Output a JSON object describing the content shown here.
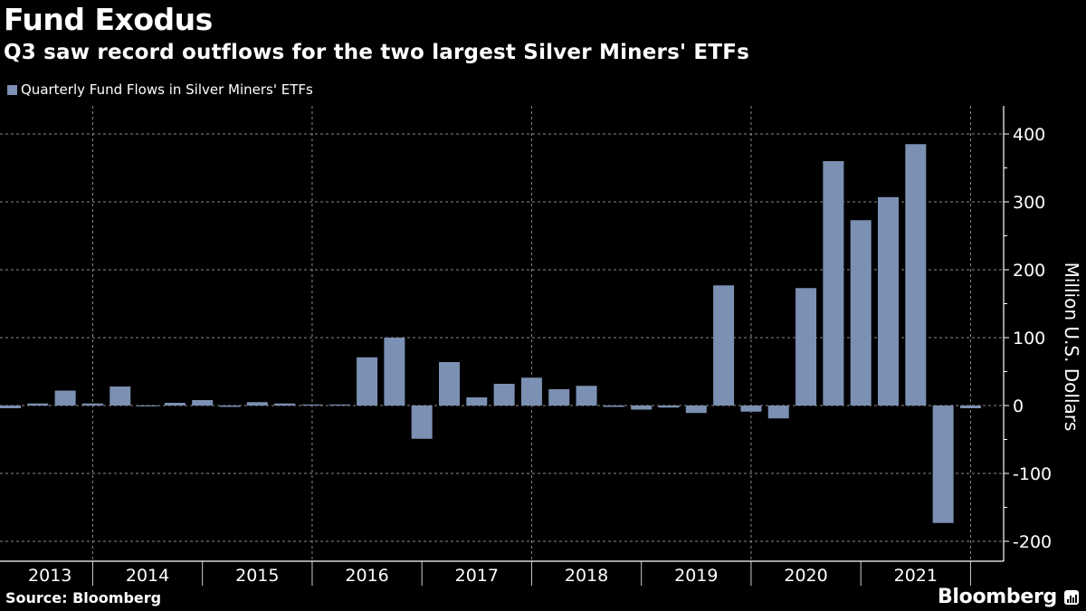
{
  "header": {
    "title": "Fund Exodus",
    "subtitle": "Q3 saw record outflows for the two largest Silver Miners' ETFs"
  },
  "footer": {
    "source": "Source: Bloomberg",
    "brand": "Bloomberg",
    "brand_icon": "bloomberg-chart-icon"
  },
  "colors": {
    "background": "#000000",
    "bar": "#7b90b2",
    "grid": "#8a8a8a",
    "text": "#ffffff"
  },
  "chart_data": {
    "type": "bar",
    "title": "Fund Exodus",
    "subtitle": "Q3 saw record outflows for the two largest Silver Miners' ETFs",
    "xlabel": "",
    "ylabel": "Million U.S. Dollars",
    "y_axis_side": "right",
    "ylim": [
      -220,
      440
    ],
    "yticks": [
      400,
      300,
      200,
      100,
      0,
      -100,
      -200
    ],
    "grid": true,
    "legend_position": "top-left",
    "year_labels": [
      "2013",
      "2014",
      "2015",
      "2016",
      "2017",
      "2018",
      "2019",
      "2020",
      "2021"
    ],
    "categories": [
      "2013 Q1",
      "2013 Q2",
      "2013 Q3",
      "2013 Q4",
      "2014 Q1",
      "2014 Q2",
      "2014 Q3",
      "2014 Q4",
      "2015 Q1",
      "2015 Q2",
      "2015 Q3",
      "2015 Q4",
      "2016 Q1",
      "2016 Q2",
      "2016 Q3",
      "2016 Q4",
      "2017 Q1",
      "2017 Q2",
      "2017 Q3",
      "2017 Q4",
      "2018 Q1",
      "2018 Q2",
      "2018 Q3",
      "2018 Q4",
      "2019 Q1",
      "2019 Q2",
      "2019 Q3",
      "2019 Q4",
      "2020 Q1",
      "2020 Q2",
      "2020 Q3",
      "2020 Q4",
      "2021 Q1",
      "2021 Q2",
      "2021 Q3",
      "2021 Q4"
    ],
    "series": [
      {
        "name": "Quarterly Fund Flows in Silver Miners' ETFs",
        "values": [
          -4,
          3,
          22,
          3,
          28,
          -1,
          4,
          8,
          -2,
          5,
          3,
          1.5,
          1.5,
          71,
          100,
          -49,
          64,
          12,
          32,
          41,
          24,
          29,
          -2,
          -6,
          -3,
          -11,
          177,
          -9,
          -19,
          173,
          360,
          273,
          307,
          385,
          -173,
          -4
        ]
      }
    ]
  }
}
